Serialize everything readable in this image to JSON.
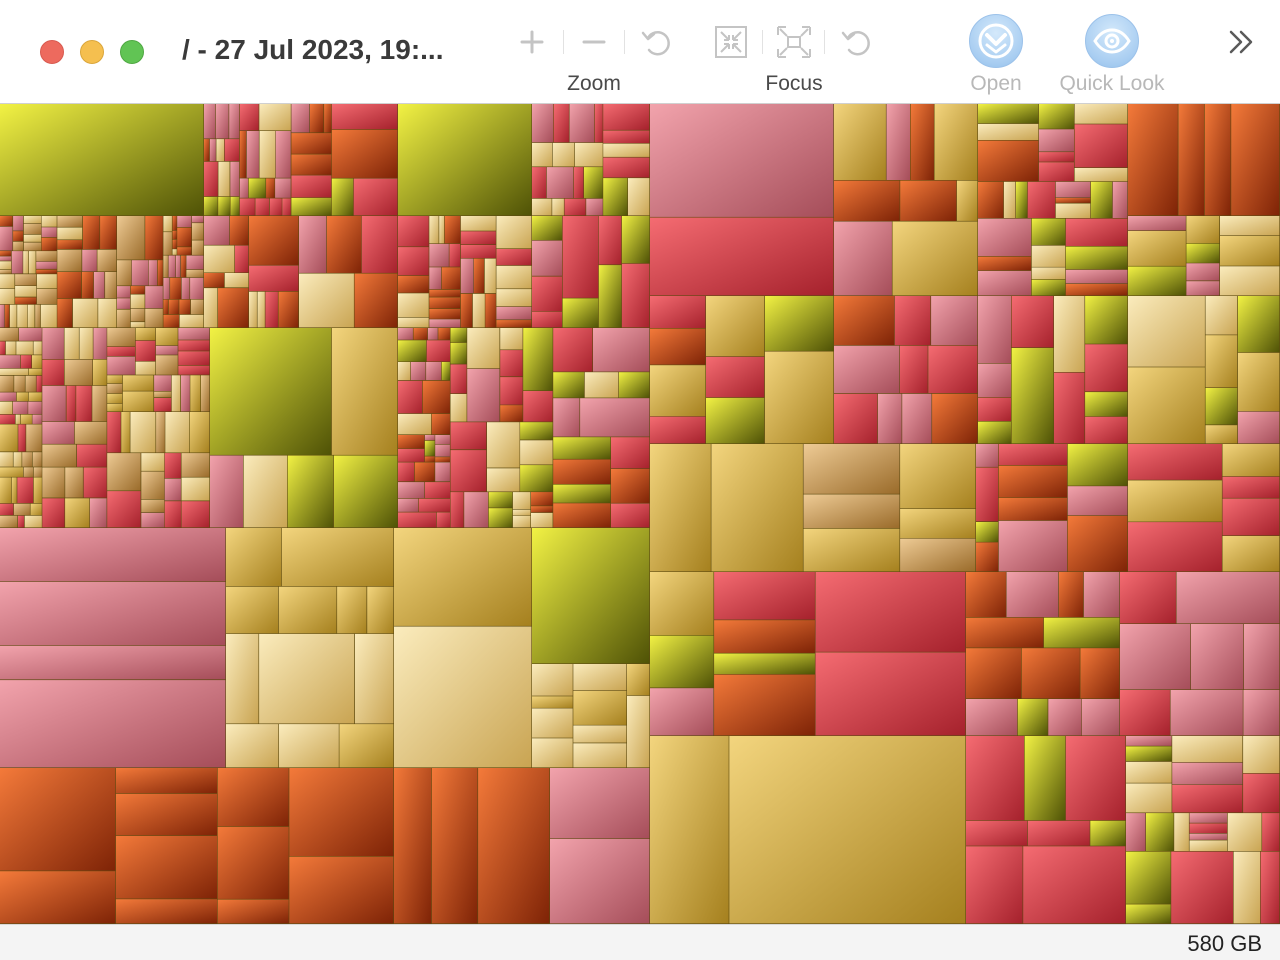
{
  "window": {
    "title": "/ - 27 Jul 2023, 19:..."
  },
  "toolbar": {
    "zoom_label": "Zoom",
    "focus_label": "Focus",
    "open_label": "Open",
    "quicklook_label": "Quick Look",
    "icons": [
      "plus-icon",
      "minus-icon",
      "undo-icon",
      "focus-in-icon",
      "focus-out-icon",
      "redo-icon",
      "open-icon",
      "eye-icon",
      "chevron-double-right-icon"
    ]
  },
  "treemap": {
    "palette": {
      "olive": [
        "#f2f244",
        "#4f5206"
      ],
      "gold": [
        "#f3d57e",
        "#a5801e"
      ],
      "cream": [
        "#fbecbd",
        "#c9a452"
      ],
      "orange": [
        "#f47a3a",
        "#7e2306"
      ],
      "red": [
        "#f56c72",
        "#a5212c"
      ],
      "pink": [
        "#f2a3ac",
        "#a54d59"
      ],
      "tan": [
        "#eecb95",
        "#9a6b2a"
      ]
    }
  },
  "status": {
    "total_size": "580 GB"
  }
}
